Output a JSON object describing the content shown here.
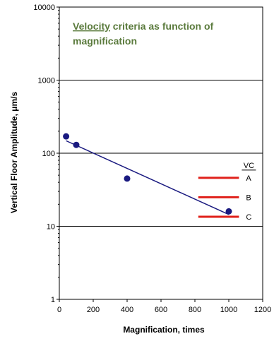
{
  "chart_data": {
    "type": "scatter",
    "title_lines": [
      {
        "emph": "Velocity",
        "rest": " criteria as function of"
      },
      {
        "emph": "",
        "rest": "magnification"
      }
    ],
    "xlabel": "Magnification, times",
    "ylabel": "Vertical Floor Amplitude,  μm/s",
    "xlim": [
      0,
      1200
    ],
    "ylim": [
      1,
      10000
    ],
    "y_scale": "log",
    "x_ticks": [
      "0",
      "200",
      "400",
      "600",
      "800",
      "1000",
      "1200"
    ],
    "x_tick_values": [
      0,
      200,
      400,
      600,
      800,
      1000,
      1200
    ],
    "y_ticks": [
      "1",
      "10",
      "100",
      "1000",
      "10000"
    ],
    "y_tick_values": [
      1,
      10,
      100,
      1000,
      10000
    ],
    "grid": "horizontal",
    "colors": {
      "points": "#1a1a80",
      "trend": "#1a1a80",
      "criteria": "#e0201a",
      "title": "#5a7a3c"
    },
    "points": [
      {
        "x": 40,
        "y": 170
      },
      {
        "x": 100,
        "y": 130
      },
      {
        "x": 400,
        "y": 45
      },
      {
        "x": 1000,
        "y": 16
      }
    ],
    "trend": {
      "x": [
        40,
        1000
      ],
      "y": [
        148,
        14.5
      ]
    },
    "criteria_header": "VC",
    "criteria": [
      {
        "label": "A",
        "y": 46
      },
      {
        "label": "B",
        "y": 25
      },
      {
        "label": "C",
        "y": 13.5
      }
    ],
    "criteria_x": [
      820,
      1060
    ]
  }
}
